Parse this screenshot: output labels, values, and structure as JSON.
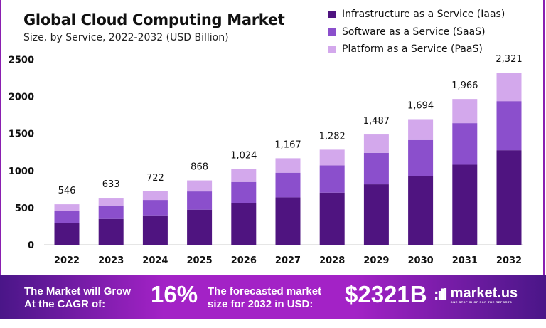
{
  "chart_data": {
    "type": "bar",
    "stacked": true,
    "title": "Global Cloud Computing Market",
    "subtitle": "Size, by Service, 2022-2032 (USD Billion)",
    "categories": [
      "2022",
      "2023",
      "2024",
      "2025",
      "2026",
      "2027",
      "2028",
      "2029",
      "2030",
      "2031",
      "2032"
    ],
    "series": [
      {
        "name": "Infrastructure as a Service (Iaas)",
        "color": "#4f1480",
        "values": [
          297,
          348,
          396,
          473,
          559,
          639,
          703,
          815,
          930,
          1080,
          1275
        ]
      },
      {
        "name": "Software as a Service (SaaS)",
        "color": "#8b4fcc",
        "values": [
          160,
          182,
          208,
          246,
          288,
          333,
          368,
          425,
          483,
          560,
          662
        ]
      },
      {
        "name": "Platform as a Service (PaaS)",
        "color": "#d3a8ec",
        "values": [
          89,
          103,
          118,
          149,
          177,
          195,
          211,
          247,
          281,
          326,
          384
        ]
      }
    ],
    "totals": [
      546,
      633,
      722,
      868,
      1024,
      1167,
      1282,
      1487,
      1694,
      1966,
      2321
    ],
    "total_labels": [
      "546",
      "633",
      "722",
      "868",
      "1,024",
      "1,167",
      "1,282",
      "1,487",
      "1,694",
      "1,966",
      "2,321"
    ],
    "ylim": [
      0,
      2500
    ],
    "yticks": [
      0,
      500,
      1000,
      1500,
      2000,
      2500
    ],
    "grid": false,
    "legend": "top-right"
  },
  "banner": {
    "cagr_text_1": "The Market will Grow",
    "cagr_text_2": "At the CAGR of:",
    "cagr_value": "16%",
    "forecast_text_1": "The forecasted market",
    "forecast_text_2": "size for 2032 in USD:",
    "forecast_value": "$2321B",
    "brand": "market.us",
    "tagline": "ONE STOP SHOP FOR THE REPORTS"
  }
}
